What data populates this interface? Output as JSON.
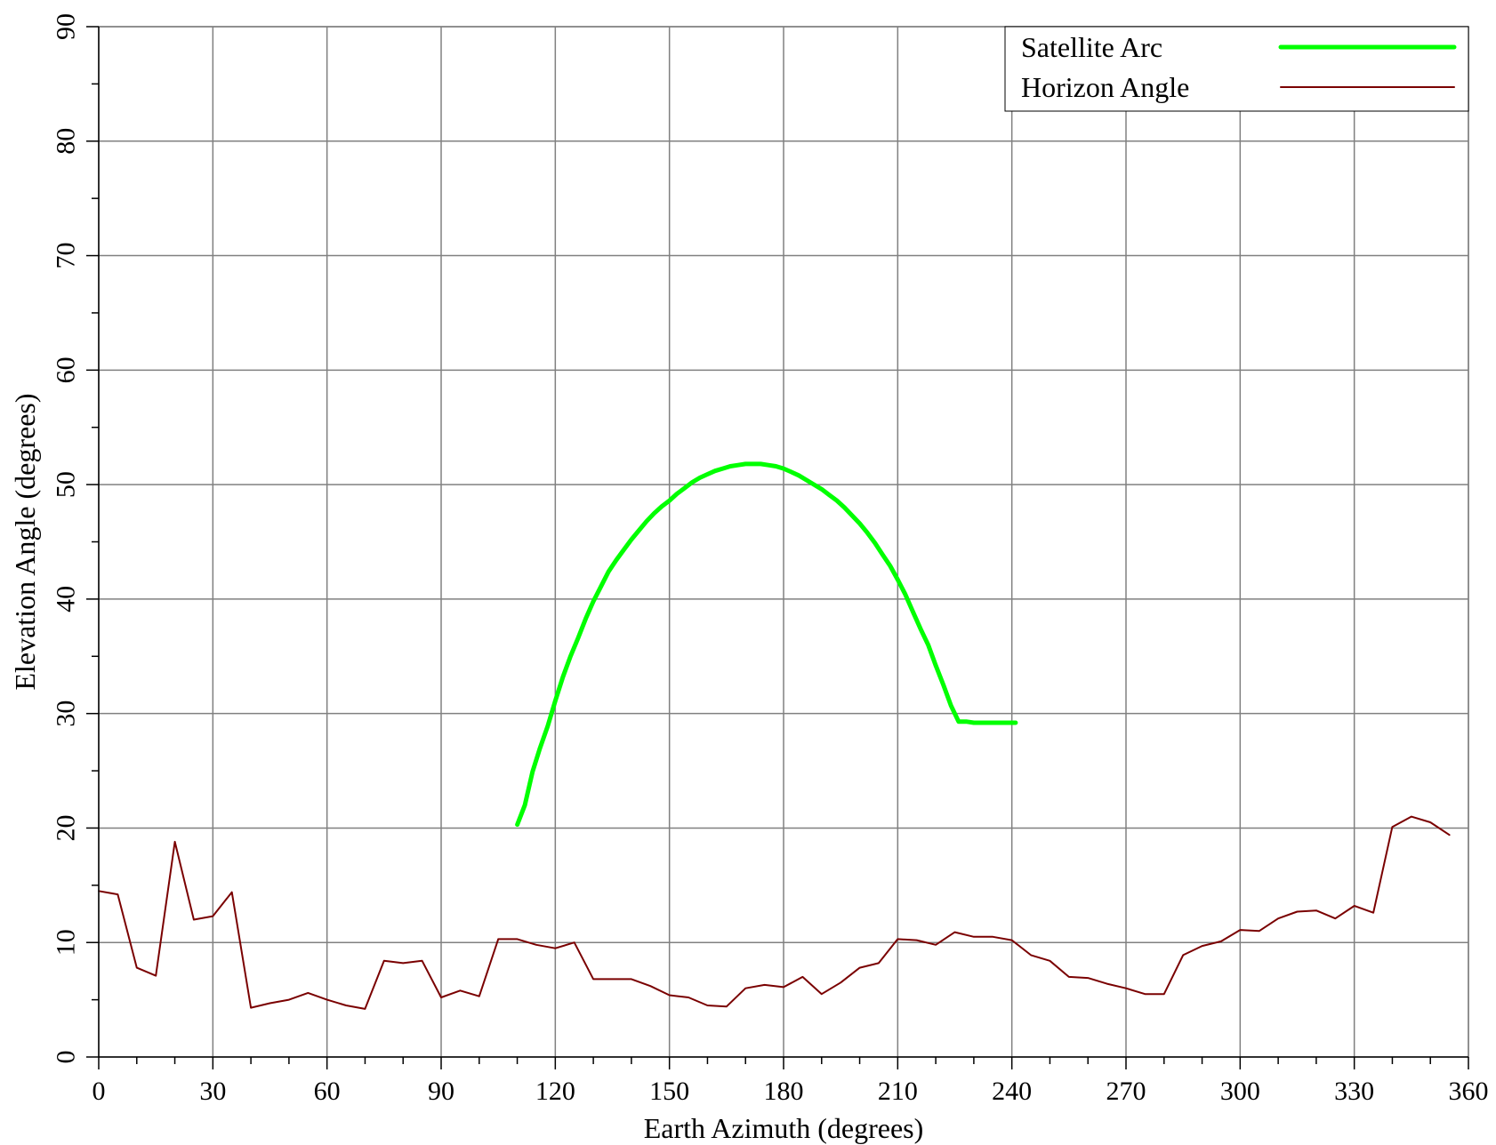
{
  "chart_data": {
    "type": "line",
    "title": "",
    "xlabel": "Earth Azimuth (degrees)",
    "ylabel": "Elevation Angle (degrees)",
    "xlim": [
      0,
      360
    ],
    "ylim": [
      0,
      90
    ],
    "x_major_ticks": [
      0,
      30,
      60,
      90,
      120,
      150,
      180,
      210,
      240,
      270,
      300,
      330,
      360
    ],
    "y_major_ticks": [
      0,
      10,
      20,
      30,
      40,
      50,
      60,
      70,
      80,
      90
    ],
    "x_minor_step": 10,
    "y_minor_step": 5,
    "grid": true,
    "legend_position": "top-right",
    "series": [
      {
        "name": "Satellite Arc",
        "color": "#00ff00",
        "x": [
          110,
          112,
          114,
          116,
          118,
          120,
          122,
          124,
          126,
          128,
          130,
          132,
          134,
          136,
          138,
          140,
          142,
          144,
          146,
          148,
          150,
          152,
          154,
          156,
          158,
          160,
          162,
          164,
          166,
          168,
          170,
          172,
          174,
          176,
          178,
          180,
          182,
          184,
          186,
          188,
          190,
          192,
          194,
          196,
          198,
          200,
          202,
          204,
          206,
          208,
          210,
          212,
          214,
          216,
          218,
          220,
          222,
          224,
          226,
          228,
          230,
          232,
          234,
          236,
          238,
          240,
          241
        ],
        "y": [
          20.3,
          22.0,
          24.9,
          27.0,
          28.9,
          31.1,
          33.2,
          35.0,
          36.6,
          38.3,
          39.8,
          41.1,
          42.4,
          43.4,
          44.3,
          45.2,
          46.0,
          46.8,
          47.5,
          48.1,
          48.6,
          49.2,
          49.7,
          50.2,
          50.6,
          50.9,
          51.2,
          51.4,
          51.6,
          51.7,
          51.8,
          51.8,
          51.8,
          51.7,
          51.6,
          51.4,
          51.1,
          50.8,
          50.4,
          50.0,
          49.6,
          49.1,
          48.6,
          48.0,
          47.3,
          46.6,
          45.8,
          44.9,
          43.9,
          42.9,
          41.7,
          40.4,
          38.9,
          37.4,
          36.0,
          34.2,
          32.5,
          30.7,
          29.3,
          29.3,
          29.2,
          29.2,
          29.2,
          29.2,
          29.2,
          29.2,
          29.2
        ],
        "line_width": 5
      },
      {
        "name": "Horizon Angle",
        "color": "#7a0000",
        "x": [
          0,
          5,
          10,
          15,
          20,
          25,
          30,
          35,
          40,
          45,
          50,
          55,
          60,
          65,
          70,
          75,
          80,
          85,
          90,
          95,
          100,
          105,
          110,
          115,
          120,
          125,
          130,
          135,
          140,
          145,
          150,
          155,
          160,
          165,
          170,
          175,
          180,
          185,
          190,
          195,
          200,
          205,
          210,
          215,
          220,
          225,
          230,
          235,
          240,
          245,
          250,
          255,
          260,
          265,
          270,
          275,
          280,
          285,
          290,
          295,
          300,
          305,
          310,
          315,
          320,
          325,
          330,
          335,
          340,
          345,
          350,
          355
        ],
        "y": [
          14.5,
          14.2,
          7.8,
          7.1,
          18.8,
          12.0,
          12.3,
          14.4,
          4.3,
          4.7,
          5.0,
          5.6,
          5.0,
          4.5,
          4.2,
          8.4,
          8.2,
          8.4,
          5.2,
          5.8,
          5.3,
          10.3,
          10.3,
          9.8,
          9.5,
          10.0,
          6.8,
          6.8,
          6.8,
          6.2,
          5.4,
          5.2,
          4.5,
          4.4,
          6.0,
          6.3,
          6.1,
          7.0,
          5.5,
          6.5,
          7.8,
          8.2,
          10.3,
          10.2,
          9.8,
          10.9,
          10.5,
          10.5,
          10.2,
          8.9,
          8.4,
          7.0,
          6.9,
          6.4,
          6.0,
          5.5,
          5.5,
          8.9,
          9.7,
          10.1,
          11.1,
          11.0,
          12.1,
          12.7,
          12.8,
          12.1,
          13.2,
          12.6,
          20.1,
          21.0,
          20.5,
          19.4
        ],
        "line_width": 2
      }
    ]
  }
}
